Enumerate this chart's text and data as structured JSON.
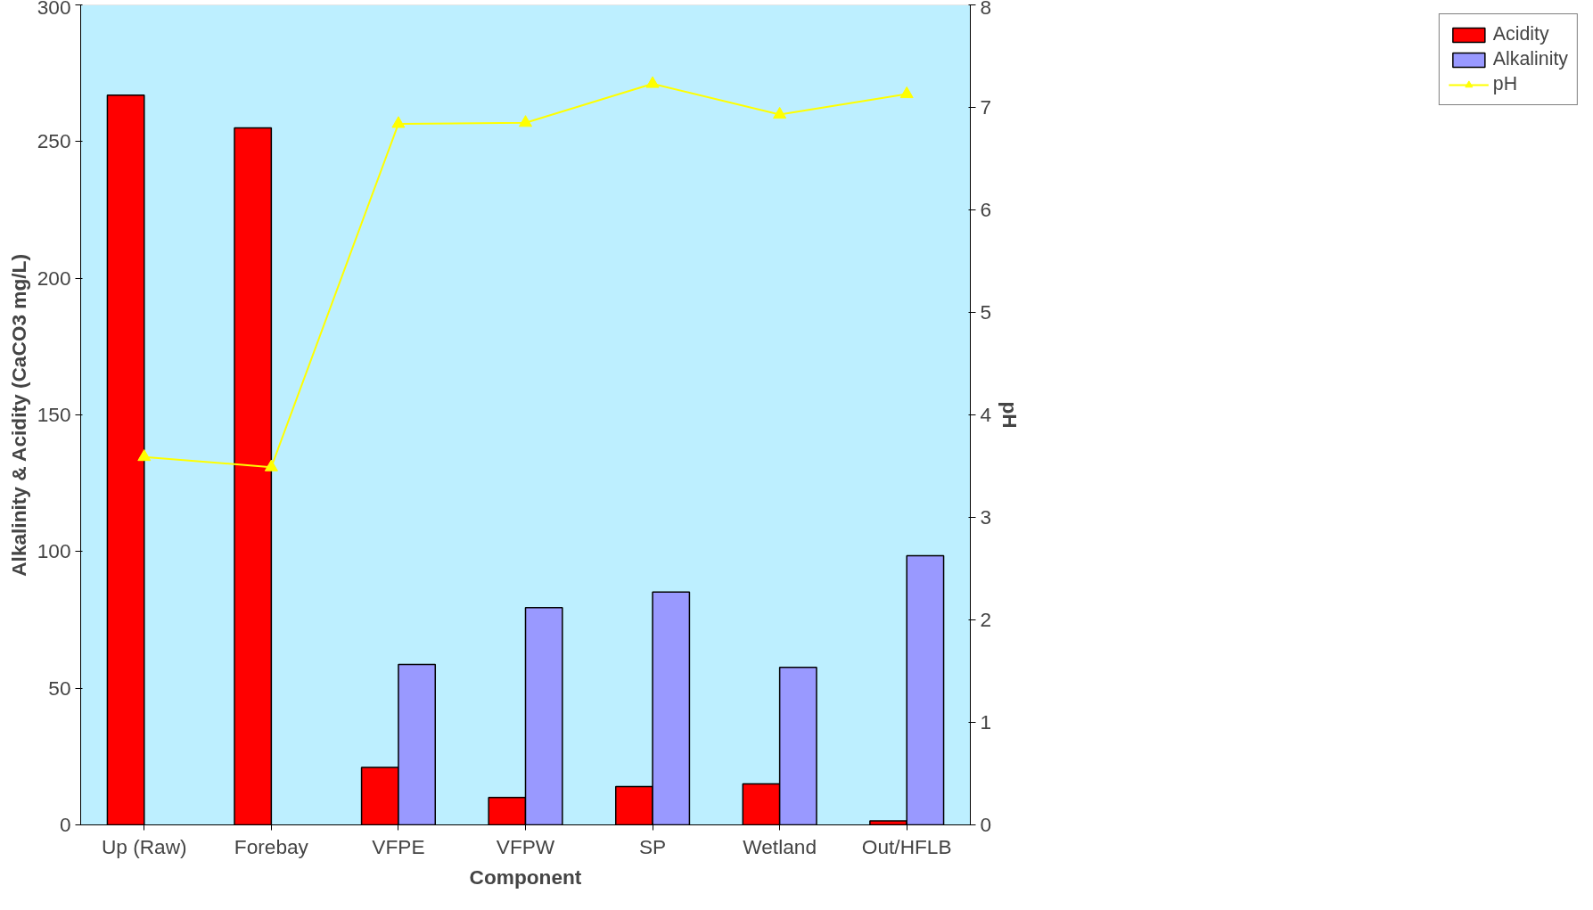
{
  "chart_data": {
    "type": "bar",
    "xlabel": "Component",
    "ylabel": "Alkalinity & Acidity (CaCO3 mg/L)",
    "y2label": "pH",
    "categories": [
      "Up (Raw)",
      "Forebay",
      "VFPE",
      "VFPW",
      "SP",
      "Wetland",
      "Out/HFLB"
    ],
    "series": [
      {
        "name": "Acidity",
        "color": "#ff0000",
        "values": [
          267,
          255,
          21,
          10,
          14,
          15,
          1.5
        ]
      },
      {
        "name": "Alkalinity",
        "color": "#9999ff",
        "values": [
          null,
          null,
          58.7,
          79.5,
          85.2,
          57.6,
          98.5
        ]
      },
      {
        "name": "pH",
        "type": "line",
        "axis": "y2",
        "color": "#ffff00",
        "marker": "triangle",
        "values": [
          3.59,
          3.49,
          6.84,
          6.85,
          7.23,
          6.93,
          7.13
        ]
      }
    ],
    "ylim": [
      0,
      300
    ],
    "yticks": [
      0,
      50,
      100,
      150,
      200,
      250,
      300
    ],
    "y2lim": [
      0,
      8
    ],
    "y2ticks": [
      0,
      1,
      2,
      3,
      4,
      5,
      6,
      7,
      8
    ],
    "grid": false,
    "legend": "right"
  }
}
